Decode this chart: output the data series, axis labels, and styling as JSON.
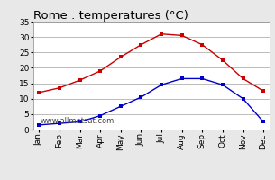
{
  "title": "Rome : temperatures (°C)",
  "months": [
    "Jan",
    "Feb",
    "Mar",
    "Apr",
    "May",
    "Jun",
    "Jul",
    "Aug",
    "Sep",
    "Oct",
    "Nov",
    "Dec"
  ],
  "max_temps": [
    12,
    13.5,
    16,
    19,
    23.5,
    27.5,
    31,
    30.5,
    27.5,
    22.5,
    16.5,
    12.5
  ],
  "min_temps": [
    1.5,
    2,
    2.5,
    4.5,
    7.5,
    10.5,
    14.5,
    16.5,
    16.5,
    14.5,
    10,
    2.5
  ],
  "max_color": "#cc0000",
  "min_color": "#0000cc",
  "marker": "s",
  "marker_size": 3,
  "ylim": [
    0,
    35
  ],
  "yticks": [
    0,
    5,
    10,
    15,
    20,
    25,
    30,
    35
  ],
  "background_color": "#e8e8e8",
  "plot_bg_color": "#ffffff",
  "grid_color": "#bbbbbb",
  "watermark": "www.allmetsat.com",
  "title_fontsize": 9.5,
  "tick_fontsize": 6.5,
  "watermark_fontsize": 6
}
